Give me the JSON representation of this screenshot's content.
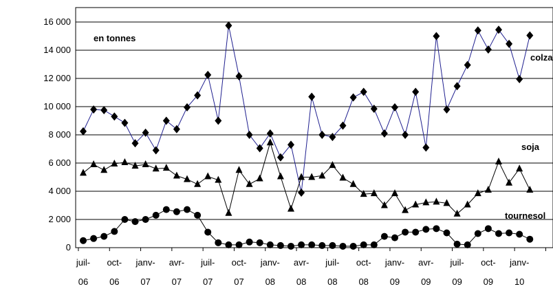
{
  "chart_data": {
    "type": "line",
    "title": "",
    "xlabel": "",
    "ylabel": "",
    "unit_label": "en tonnes",
    "ylim": [
      0,
      16000
    ],
    "y_ticks": [
      "0",
      "2 000",
      "4 000",
      "6 000",
      "8 000",
      "10 000",
      "12 000",
      "14 000",
      "16 000"
    ],
    "y_tick_values": [
      0,
      2000,
      4000,
      6000,
      8000,
      10000,
      12000,
      14000,
      16000
    ],
    "grid": true,
    "legend": "inline labels at right end of each series",
    "x_tick_labels": [
      {
        "top": "juil-",
        "bottom": "06",
        "month_index": 0
      },
      {
        "top": "oct-",
        "bottom": "06",
        "month_index": 3
      },
      {
        "top": "janv-",
        "bottom": "07",
        "month_index": 6
      },
      {
        "top": "avr-",
        "bottom": "07",
        "month_index": 9
      },
      {
        "top": "juil-",
        "bottom": "07",
        "month_index": 12
      },
      {
        "top": "oct-",
        "bottom": "07",
        "month_index": 15
      },
      {
        "top": "janv-",
        "bottom": "08",
        "month_index": 18
      },
      {
        "top": "avr-",
        "bottom": "08",
        "month_index": 21
      },
      {
        "top": "juil-",
        "bottom": "08",
        "month_index": 24
      },
      {
        "top": "oct-",
        "bottom": "08",
        "month_index": 27
      },
      {
        "top": "janv-",
        "bottom": "09",
        "month_index": 30
      },
      {
        "top": "avr-",
        "bottom": "09",
        "month_index": 33
      },
      {
        "top": "juil-",
        "bottom": "09",
        "month_index": 36
      },
      {
        "top": "oct-",
        "bottom": "09",
        "month_index": 39
      },
      {
        "top": "janv-",
        "bottom": "10",
        "month_index": 42
      }
    ],
    "x": [
      "2006-07",
      "2006-08",
      "2006-09",
      "2006-10",
      "2006-11",
      "2006-12",
      "2007-01",
      "2007-02",
      "2007-03",
      "2007-04",
      "2007-05",
      "2007-06",
      "2007-07",
      "2007-08",
      "2007-09",
      "2007-10",
      "2007-11",
      "2007-12",
      "2008-01",
      "2008-02",
      "2008-03",
      "2008-04",
      "2008-05",
      "2008-06",
      "2008-07",
      "2008-08",
      "2008-09",
      "2008-10",
      "2008-11",
      "2008-12",
      "2009-01",
      "2009-02",
      "2009-03",
      "2009-04",
      "2009-05",
      "2009-06",
      "2009-07",
      "2009-08",
      "2009-09",
      "2009-10",
      "2009-11",
      "2009-12",
      "2010-01",
      "2010-02",
      "2010-03"
    ],
    "series": [
      {
        "name": "colza",
        "color": "#1f1f8f",
        "marker": "diamond",
        "values": [
          8250,
          9800,
          9750,
          9300,
          8850,
          7400,
          8150,
          6900,
          9000,
          8400,
          9950,
          10800,
          12250,
          9000,
          15750,
          12150,
          8000,
          7050,
          8100,
          6400,
          7300,
          3900,
          10700,
          8000,
          7850,
          8650,
          10650,
          11050,
          9850,
          8100,
          9950,
          8000,
          11050,
          7100,
          15000,
          9800,
          11450,
          12950,
          15400,
          14050,
          15450,
          14450,
          11950,
          15050,
          null
        ]
      },
      {
        "name": "soja",
        "color": "#000000",
        "marker": "triangle",
        "values": [
          5300,
          5900,
          5500,
          5950,
          6050,
          5800,
          5900,
          5600,
          5650,
          5100,
          4850,
          4500,
          5050,
          4800,
          2450,
          5500,
          4500,
          4900,
          7450,
          5050,
          2750,
          5000,
          5000,
          5100,
          5850,
          4950,
          4500,
          3800,
          3850,
          3000,
          3850,
          2650,
          3050,
          3200,
          3250,
          3150,
          2400,
          3050,
          3850,
          4100,
          6100,
          4600,
          5600,
          4100,
          null
        ]
      },
      {
        "name": "tournesol",
        "color": "#000000",
        "marker": "circle",
        "values": [
          500,
          650,
          800,
          1150,
          2000,
          1850,
          2000,
          2300,
          2700,
          2550,
          2700,
          2300,
          1100,
          350,
          200,
          200,
          400,
          350,
          200,
          150,
          100,
          200,
          200,
          150,
          150,
          100,
          100,
          200,
          200,
          800,
          700,
          1100,
          1100,
          1300,
          1350,
          1050,
          250,
          200,
          1000,
          1350,
          1000,
          1050,
          950,
          600,
          null
        ]
      }
    ]
  }
}
